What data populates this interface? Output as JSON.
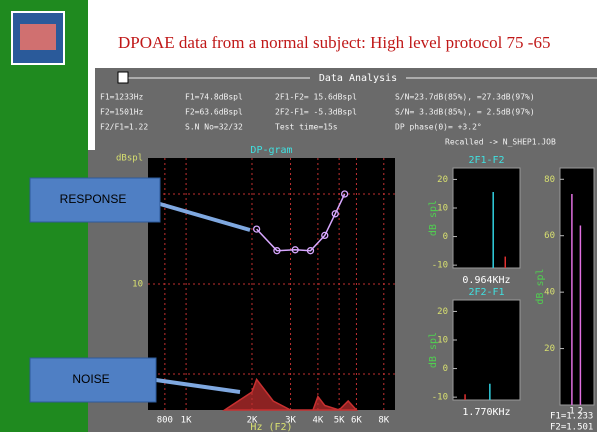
{
  "title": "DPOAE data from a normal subject: High level protocol 75 -65",
  "window_title": "Data Analysis",
  "info": [
    [
      "F1=1233Hz",
      "F1=74.8dBspl",
      "2F1-F2= 15.6dBspl",
      "S/N=23.7dB(85%), =27.3dB(97%)"
    ],
    [
      "F2=1501Hz",
      "F2=63.6dBspl",
      "2F2-F1= -5.3dBspl",
      "S/N= 3.3dB(85%), = 2.5dB(97%)"
    ],
    [
      "F2/F1=1.22",
      "S.N No=32/32",
      "Test time=15s",
      "DP phase(0)= +3.2°"
    ],
    [
      "Recalled -> N_SHEP1.JOB"
    ]
  ],
  "callouts": [
    "RESPONSE",
    "NOISE"
  ],
  "chart_data": [
    {
      "type": "line",
      "title": "DP-gram",
      "y_label": "dBspl",
      "x_label": "Hz (F2)",
      "log_x": true,
      "grid": true,
      "xlim": [
        670,
        9000
      ],
      "ylim": [
        -4,
        24
      ],
      "xticks": [
        {
          "value": 800,
          "label": "800"
        },
        {
          "value": 1000,
          "label": "1K"
        },
        {
          "value": 2000,
          "label": "2K"
        },
        {
          "value": 3000,
          "label": "3K"
        },
        {
          "value": 4000,
          "label": "4K"
        },
        {
          "value": 5000,
          "label": "5K"
        },
        {
          "value": 6000,
          "label": "6K"
        },
        {
          "value": 8000,
          "label": "8K"
        }
      ],
      "yticks": [
        0,
        10,
        20
      ],
      "series": [
        {
          "color": "#d8a8ff",
          "markers": true,
          "x": [
            2100,
            2600,
            3150,
            3700,
            4300,
            4800,
            5300
          ],
          "values": [
            16.1,
            13.7,
            13.8,
            13.7,
            15.4,
            17.8,
            20.0
          ]
        },
        {
          "color": "#c83030",
          "fill": true,
          "x": [
            1500,
            2000,
            2100,
            2500,
            3000,
            3800,
            4000,
            4300,
            5000,
            5500,
            6000
          ],
          "values": [
            -4,
            -2,
            -0.6,
            -3,
            -4,
            -4,
            -2.5,
            -3.5,
            -4,
            -3,
            -4
          ]
        }
      ]
    },
    {
      "type": "stem",
      "title": "2F1-F2",
      "y_label": "dB spl",
      "x_label": "0.964KHz",
      "ylim": [
        -11,
        24
      ],
      "yticks": [
        -10,
        0,
        10,
        20
      ],
      "values": [
        15.6,
        -7
      ],
      "colors": [
        "#30d0e0",
        "#e03030"
      ]
    },
    {
      "type": "stem",
      "title": "2F2-F1",
      "y_label": "dB spl",
      "x_label": "1.770KHz",
      "ylim": [
        -11,
        24
      ],
      "yticks": [
        -10,
        0,
        10,
        20
      ],
      "values": [
        -9,
        -5.3
      ],
      "colors": [
        "#e03030",
        "#30d0e0"
      ]
    },
    {
      "type": "stem",
      "y_label": "dB spl",
      "ylim": [
        0,
        84
      ],
      "yticks": [
        20,
        40,
        60,
        80
      ],
      "categories": [
        "1",
        "2"
      ],
      "values": [
        74.8,
        63.6
      ],
      "colors": [
        "#e070e0",
        "#e070e0"
      ],
      "notes": [
        "F1=1.233",
        "F2=1.501"
      ]
    }
  ]
}
